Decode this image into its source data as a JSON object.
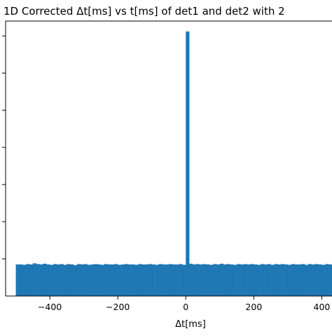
{
  "chart_data": {
    "type": "bar",
    "title": "1D Corrected Δt[ms] vs t[ms] of det1 and det2 with 2",
    "xlabel": "Δt[ms]",
    "ylabel": "",
    "x_ticks": [
      -400,
      -200,
      0,
      200,
      400
    ],
    "x_tick_labels": [
      "−400",
      "−200",
      "0",
      "200",
      "400"
    ],
    "y_tick_count": 7,
    "xlim": [
      -530,
      430
    ],
    "ylim": [
      0,
      7.4
    ],
    "grid": false,
    "bar_color": "#1f77b4",
    "bin_width": 10,
    "bins_x": [
      -500,
      -490,
      -480,
      -470,
      -460,
      -450,
      -440,
      -430,
      -420,
      -410,
      -400,
      -390,
      -380,
      -370,
      -360,
      -350,
      -340,
      -330,
      -320,
      -310,
      -300,
      -290,
      -280,
      -270,
      -260,
      -250,
      -240,
      -230,
      -220,
      -210,
      -200,
      -190,
      -180,
      -170,
      -160,
      -150,
      -140,
      -130,
      -120,
      -110,
      -100,
      -90,
      -80,
      -70,
      -60,
      -50,
      -40,
      -30,
      -20,
      -10,
      0,
      10,
      20,
      30,
      40,
      50,
      60,
      70,
      80,
      90,
      100,
      110,
      120,
      130,
      140,
      150,
      160,
      170,
      180,
      190,
      200,
      210,
      220,
      230,
      240,
      250,
      260,
      270,
      280,
      290,
      300,
      310,
      320,
      330,
      340,
      350,
      360,
      370,
      380,
      390,
      400,
      410,
      420
    ],
    "values": [
      0.85,
      0.85,
      0.84,
      0.86,
      0.85,
      0.88,
      0.86,
      0.85,
      0.87,
      0.85,
      0.84,
      0.86,
      0.85,
      0.86,
      0.84,
      0.86,
      0.85,
      0.83,
      0.86,
      0.85,
      0.86,
      0.84,
      0.85,
      0.86,
      0.85,
      0.84,
      0.86,
      0.85,
      0.85,
      0.86,
      0.84,
      0.85,
      0.86,
      0.85,
      0.85,
      0.84,
      0.86,
      0.85,
      0.85,
      0.86,
      0.85,
      0.84,
      0.86,
      0.85,
      0.85,
      0.86,
      0.85,
      0.85,
      0.86,
      0.84,
      7.12,
      0.87,
      0.85,
      0.86,
      0.85,
      0.86,
      0.85,
      0.84,
      0.86,
      0.85,
      0.87,
      0.85,
      0.86,
      0.85,
      0.84,
      0.86,
      0.85,
      0.86,
      0.85,
      0.86,
      0.85,
      0.84,
      0.86,
      0.85,
      0.86,
      0.84,
      0.86,
      0.85,
      0.86,
      0.85,
      0.84,
      0.86,
      0.85,
      0.85,
      0.86,
      0.84,
      0.86,
      0.85,
      0.86,
      0.85,
      0.84,
      0.86,
      0.85
    ]
  }
}
